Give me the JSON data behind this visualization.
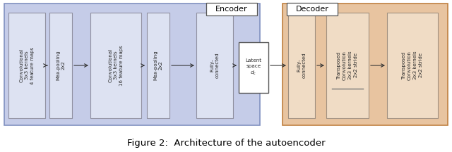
{
  "title": "Figure 2:  Architecture of the autoencoder",
  "title_fontsize": 9.5,
  "encoder_bg": "#c5cce8",
  "encoder_border": "#8090c0",
  "decoder_bg": "#e8c4a0",
  "decoder_border": "#c08040",
  "box_bg_encoder": "#dde2f2",
  "box_bg_decoder": "#f0dcc5",
  "box_border_enc": "#9090a0",
  "box_border_dec": "#a09080",
  "latent_bg": "#ffffff",
  "latent_border": "#555555",
  "encoder_label": "Encoder",
  "decoder_label": "Decoder",
  "encoder_boxes": [
    "Convolutional\n3x3 kernels\n4 feature maps",
    "Max-pooling\n2x2",
    "Convolutional\n3x3 kernels\n16 feature maps",
    "Max-pooling\n2x2",
    "Fully-\nconnected"
  ],
  "decoder_boxes": [
    "Fully-\nconnected",
    "Transposed\nConvolution\n3x3 kernels\n2x2 stride",
    "Transposed\nConvolution\n3x3 kernels\n2x2 stride"
  ],
  "latent_label": "Latent\nspace\n$d_c$",
  "text_color": "#2a2a2a",
  "arrow_color": "#333333",
  "font_size": 5.0,
  "label_font_size": 8.0
}
